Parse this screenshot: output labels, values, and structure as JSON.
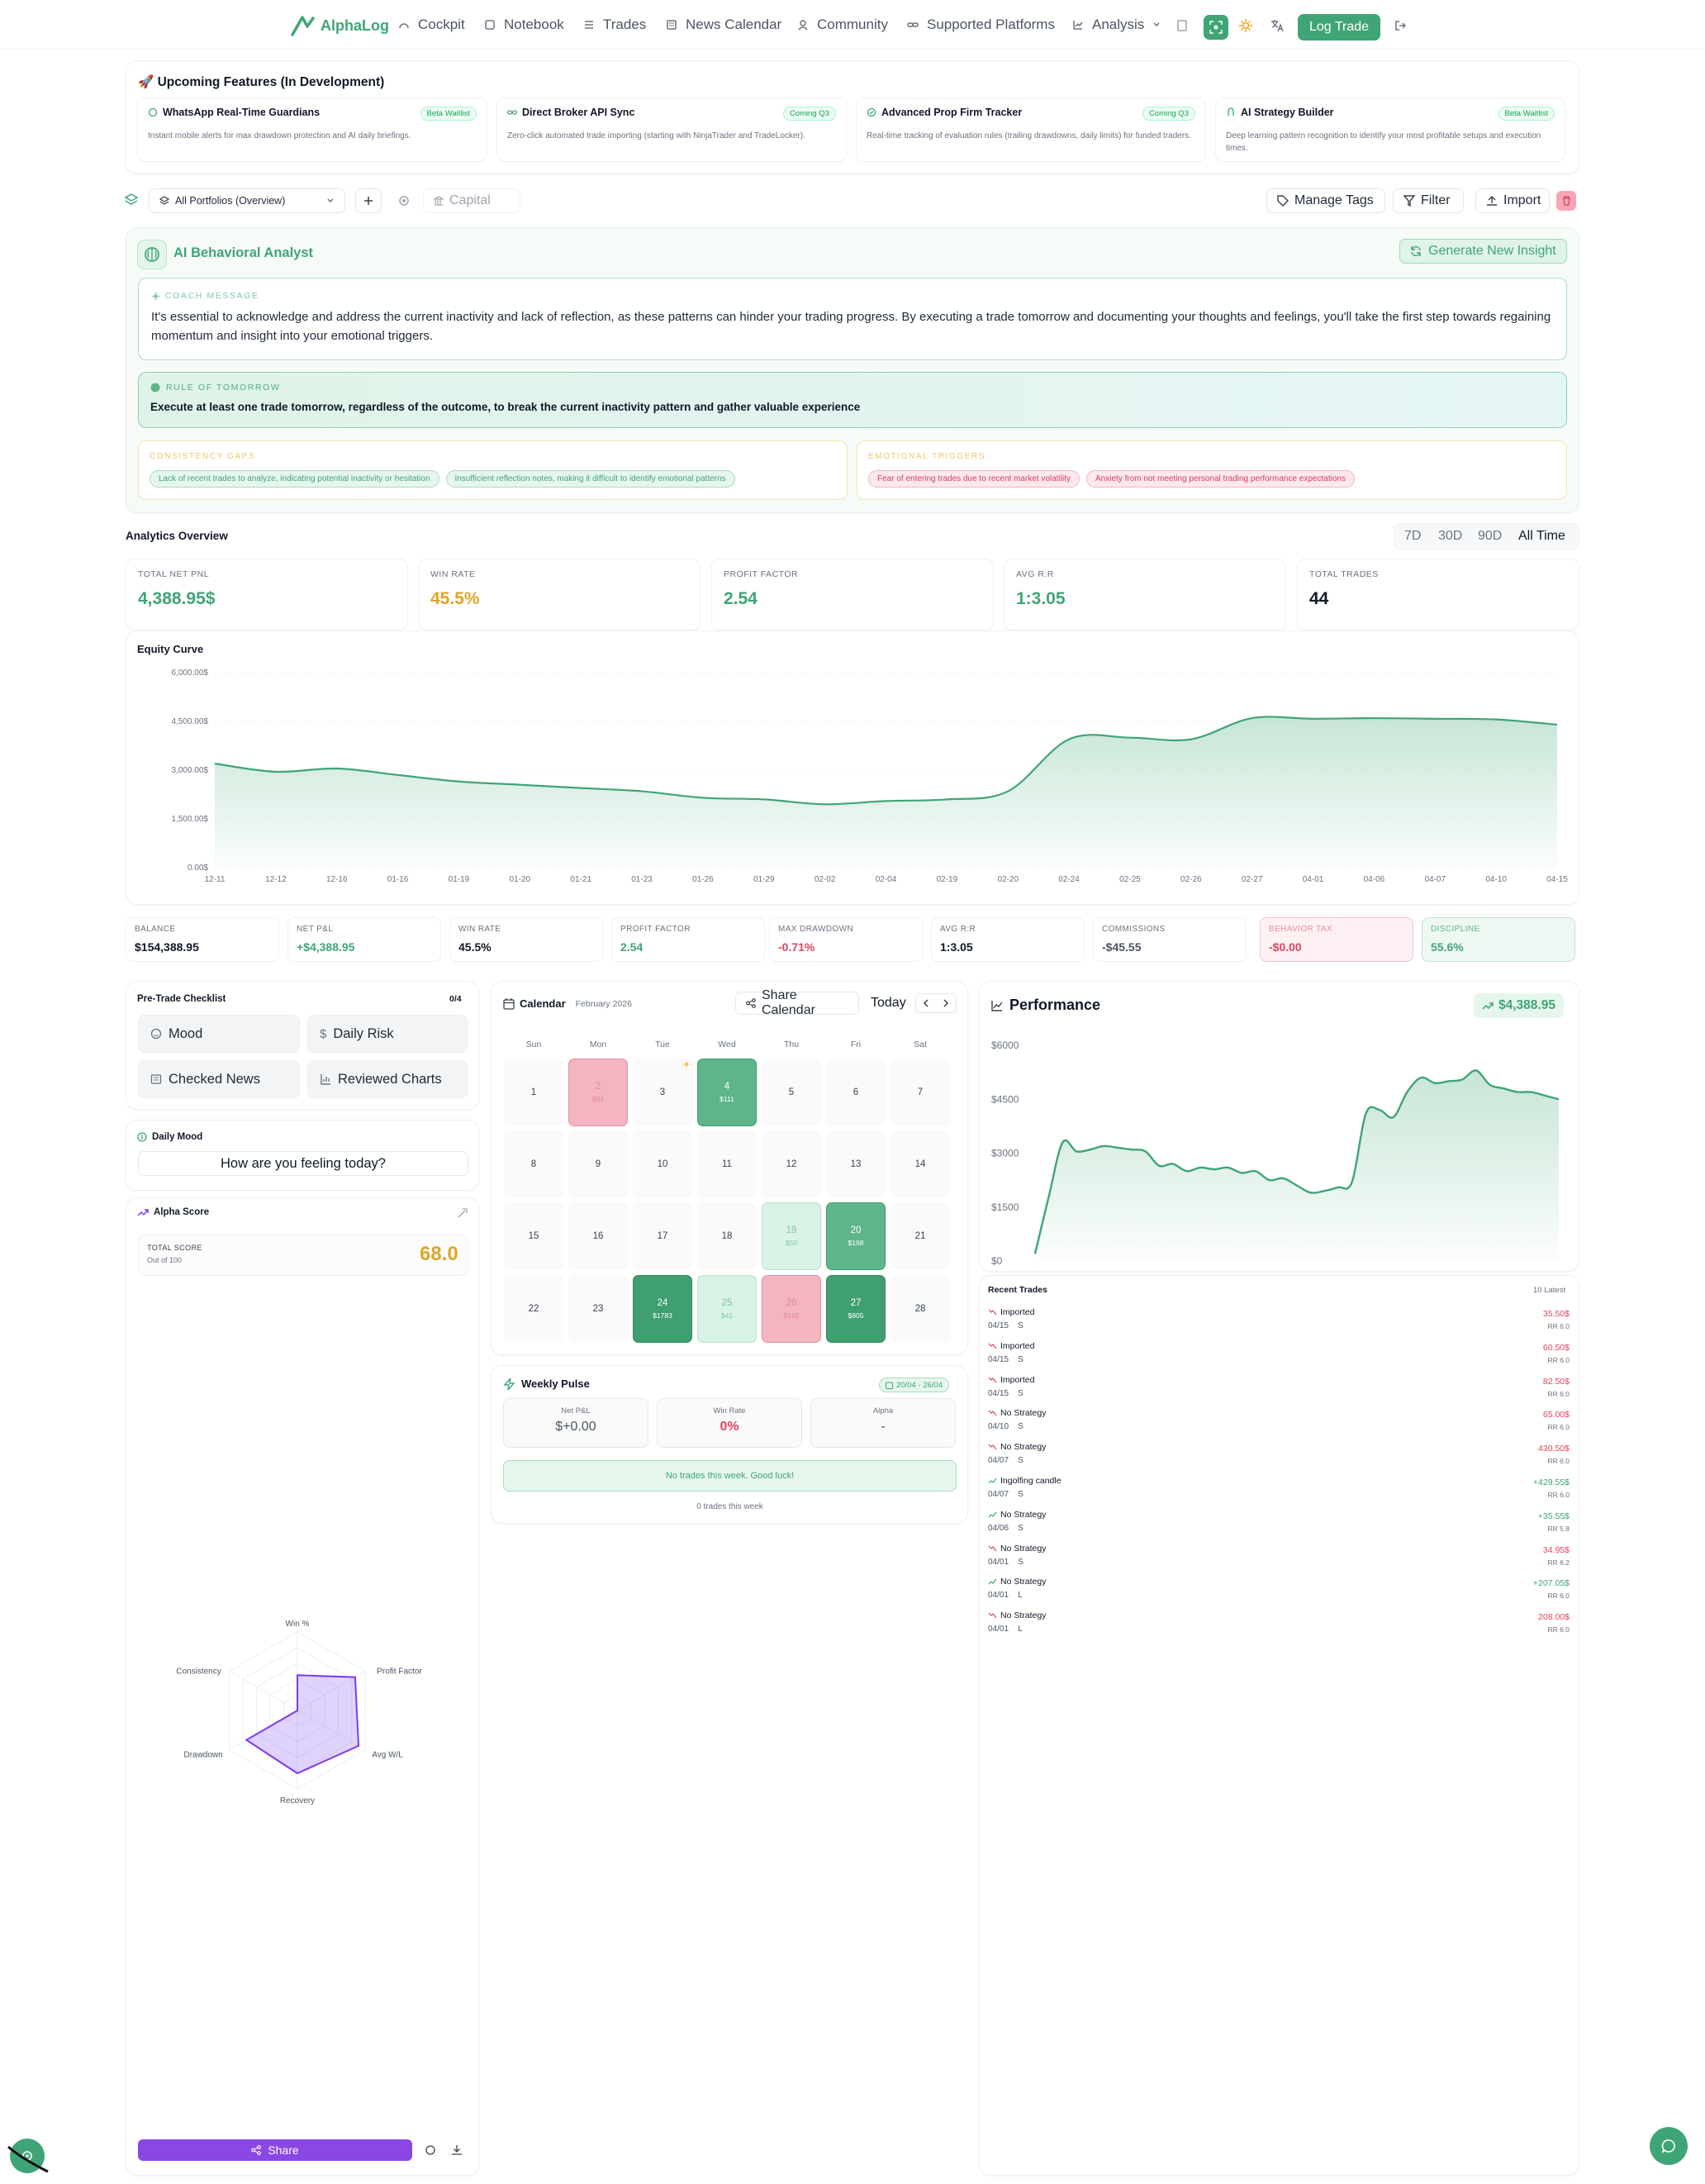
{
  "header": {
    "brand": "AlphaLog",
    "nav": [
      "Cockpit",
      "Notebook",
      "Trades",
      "News Calendar",
      "Community",
      "Supported Platforms",
      "Analysis"
    ],
    "log_trade": "Log Trade"
  },
  "features": {
    "title": "🚀 Upcoming Features (In Development)",
    "items": [
      {
        "title": "WhatsApp Real-Time Guardians",
        "badge": "Beta Waitlist",
        "desc": "Instant mobile alerts for max drawdown protection and AI daily briefings."
      },
      {
        "title": "Direct Broker API Sync",
        "badge": "Coming Q3",
        "desc": "Zero-click automated trade importing (starting with NinjaTrader and TradeLocker)."
      },
      {
        "title": "Advanced Prop Firm Tracker",
        "badge": "Coming Q3",
        "desc": "Real-time tracking of evaluation rules (trailing drawdowns, daily limits) for funded traders."
      },
      {
        "title": "AI Strategy Builder",
        "badge": "Beta Waitlist",
        "desc": "Deep learning pattern recognition to identify your most profitable setups and execution times."
      }
    ]
  },
  "toolbar": {
    "portfolio": "All Portfolios (Overview)",
    "capital_placeholder": "Capital",
    "manage_tags": "Manage Tags",
    "filter": "Filter",
    "import": "Import"
  },
  "ai": {
    "title": "AI Behavioral Analyst",
    "generate": "Generate New Insight",
    "coach_label": "COACH MESSAGE",
    "coach": "It's essential to acknowledge and address the current inactivity and lack of reflection, as these patterns can hinder your trading progress. By executing a trade tomorrow and documenting your thoughts and feelings, you'll take the first step towards regaining momentum and insight into your emotional triggers.",
    "rule_label": "RULE OF TOMORROW",
    "rule": "Execute at least one trade tomorrow, regardless of the outcome, to break the current inactivity pattern and gather valuable experience",
    "gaps_label": "CONSISTENCY GAPS",
    "gaps": [
      "Lack of recent trades to analyze, indicating potential inactivity or hesitation",
      "Insufficient reflection notes, making it difficult to identify emotional patterns"
    ],
    "triggers_label": "EMOTIONAL TRIGGERS",
    "triggers": [
      "Fear of entering trades due to recent market volatility",
      "Anxiety from not meeting personal trading performance expectations"
    ]
  },
  "analytics": {
    "title": "Analytics Overview",
    "ranges": [
      "7D",
      "30D",
      "90D",
      "All Time"
    ],
    "active_range": "All Time",
    "stats": [
      {
        "label": "TOTAL NET PNL",
        "value": "4,388.95$",
        "color": "#3fa576"
      },
      {
        "label": "WIN RATE",
        "value": "45.5%",
        "color": "#e0a526"
      },
      {
        "label": "PROFIT FACTOR",
        "value": "2.54",
        "color": "#3fa576"
      },
      {
        "label": "AVG R:R",
        "value": "1:3.05",
        "color": "#3fa576"
      },
      {
        "label": "TOTAL TRADES",
        "value": "44",
        "color": "#111827"
      }
    ]
  },
  "chart_data": [
    {
      "type": "area",
      "title": "Equity Curve",
      "ylim": [
        0,
        6000
      ],
      "yticks": [
        "0.00$",
        "1,500.00$",
        "3,000.00$",
        "4,500.00$",
        "6,000.00$"
      ],
      "x": [
        "12-11",
        "12-12",
        "12-16",
        "01-16",
        "01-19",
        "01-20",
        "01-21",
        "01-23",
        "01-26",
        "01-29",
        "02-02",
        "02-04",
        "02-19",
        "02-20",
        "02-24",
        "02-25",
        "02-26",
        "02-27",
        "04-01",
        "04-06",
        "04-07",
        "04-10",
        "04-15"
      ],
      "values": [
        3200,
        2950,
        3050,
        2850,
        2650,
        2550,
        2450,
        2350,
        2150,
        2100,
        1950,
        2050,
        2100,
        2350,
        3950,
        4000,
        3950,
        4600,
        4580,
        4600,
        4580,
        4560,
        4400
      ]
    },
    {
      "type": "area",
      "title": "Performance",
      "ylim": [
        0,
        6000
      ],
      "yticks": [
        "$0",
        "$1500",
        "$3000",
        "$4500",
        "$6000"
      ],
      "values": [
        200,
        1800,
        3300,
        3050,
        3100,
        3200,
        3150,
        3100,
        3050,
        2650,
        2700,
        2500,
        2600,
        2550,
        2600,
        2450,
        2500,
        2250,
        2300,
        2100,
        1900,
        1950,
        2050,
        2200,
        4100,
        4200,
        4000,
        4700,
        5100,
        4950,
        5000,
        5050,
        5300,
        4900,
        4800,
        4700,
        4700,
        4600,
        4500
      ]
    },
    {
      "type": "radar",
      "labels": [
        "Win %",
        "Profit Factor",
        "Avg W/L",
        "Recovery",
        "Drawdown",
        "Consistency"
      ],
      "values": [
        45,
        85,
        90,
        80,
        75,
        0
      ]
    }
  ],
  "balance": [
    {
      "label": "BALANCE",
      "value": "$154,388.95",
      "color": "#111827"
    },
    {
      "label": "NET P&L",
      "value": "+$4,388.95",
      "color": "#3fa576"
    },
    {
      "label": "WIN RATE",
      "value": "45.5%",
      "color": "#111827"
    },
    {
      "label": "PROFIT FACTOR",
      "value": "2.54",
      "color": "#3fa576"
    },
    {
      "label": "MAX DRAWDOWN",
      "value": "-0.71%",
      "color": "#e0445f"
    },
    {
      "label": "AVG R:R",
      "value": "1:3.05",
      "color": "#111827"
    },
    {
      "label": "COMMISSIONS",
      "value": "-$45.55",
      "color": "#4b5563"
    },
    {
      "label": "BEHAVIOR TAX",
      "value": "-$0.00",
      "color": "#e0445f"
    },
    {
      "label": "DISCIPLINE",
      "value": "55.6%",
      "color": "#3fa576"
    }
  ],
  "checklist": {
    "title": "Pre-Trade Checklist",
    "count": "0/4",
    "items": [
      "Mood",
      "Daily Risk",
      "Checked News",
      "Reviewed Charts"
    ]
  },
  "mood": {
    "title": "Daily Mood",
    "prompt": "How are you feeling today?"
  },
  "alpha": {
    "title": "Alpha Score",
    "total_label": "TOTAL SCORE",
    "sub": "Out of 100",
    "score": "68.0",
    "share": "Share"
  },
  "calendar": {
    "title": "Calendar",
    "month": "February 2026",
    "share": "Share Calendar",
    "today": "Today",
    "weekdays": [
      "Sun",
      "Mon",
      "Tue",
      "Wed",
      "Thu",
      "Fri",
      "Sat"
    ],
    "days": [
      {
        "d": "1"
      },
      {
        "d": "2",
        "p": "$64",
        "s": "r"
      },
      {
        "d": "3"
      },
      {
        "d": "4",
        "p": "$111",
        "s": "g"
      },
      {
        "d": "5"
      },
      {
        "d": "6"
      },
      {
        "d": "7"
      },
      {
        "d": "8"
      },
      {
        "d": "9"
      },
      {
        "d": "10"
      },
      {
        "d": "11"
      },
      {
        "d": "12"
      },
      {
        "d": "13"
      },
      {
        "d": "14"
      },
      {
        "d": "15"
      },
      {
        "d": "16"
      },
      {
        "d": "17"
      },
      {
        "d": "18"
      },
      {
        "d": "19",
        "p": "$50",
        "s": "lg"
      },
      {
        "d": "20",
        "p": "$198",
        "s": "g"
      },
      {
        "d": "21"
      },
      {
        "d": "22"
      },
      {
        "d": "23"
      },
      {
        "d": "24",
        "p": "$1783",
        "s": "dg"
      },
      {
        "d": "25",
        "p": "$41",
        "s": "lg"
      },
      {
        "d": "26",
        "p": "$165",
        "s": "r"
      },
      {
        "d": "27",
        "p": "$805",
        "s": "dg"
      },
      {
        "d": "28"
      }
    ]
  },
  "weekly": {
    "title": "Weekly Pulse",
    "range": "20/04 - 26/04",
    "netpnl_label": "Net P&L",
    "netpnl": "$+0.00",
    "winrate_label": "Win Rate",
    "winrate": "0%",
    "alpha_label": "Alpha",
    "alpha": "-",
    "msg": "No trades this week. Good luck!",
    "count": "0 trades this week"
  },
  "performance": {
    "title": "Performance",
    "value": "$4,388.95"
  },
  "recent": {
    "title": "Recent Trades",
    "latest": "10 Latest",
    "trades": [
      {
        "name": "Imported",
        "date": "04/15",
        "side": "S",
        "pnl": "35.50$",
        "rr": "RR 6.0",
        "win": false
      },
      {
        "name": "Imported",
        "date": "04/15",
        "side": "S",
        "pnl": "60.50$",
        "rr": "RR 6.0",
        "win": false
      },
      {
        "name": "Imported",
        "date": "04/15",
        "side": "S",
        "pnl": "82.50$",
        "rr": "RR 6.0",
        "win": false
      },
      {
        "name": "No Strategy",
        "date": "04/10",
        "side": "S",
        "pnl": "65.00$",
        "rr": "RR 6.0",
        "win": false
      },
      {
        "name": "No Strategy",
        "date": "04/07",
        "side": "S",
        "pnl": "430.50$",
        "rr": "RR 6.0",
        "win": false
      },
      {
        "name": "Ingolfing candle",
        "date": "04/07",
        "side": "S",
        "pnl": "+429.55$",
        "rr": "RR 6.0",
        "win": true
      },
      {
        "name": "No Strategy",
        "date": "04/06",
        "side": "S",
        "pnl": "+35.55$",
        "rr": "RR 5.8",
        "win": true
      },
      {
        "name": "No Strategy",
        "date": "04/01",
        "side": "S",
        "pnl": "34.95$",
        "rr": "RR 6.2",
        "win": false
      },
      {
        "name": "No Strategy",
        "date": "04/01",
        "side": "L",
        "pnl": "+207.05$",
        "rr": "RR 6.0",
        "win": true
      },
      {
        "name": "No Strategy",
        "date": "04/01",
        "side": "L",
        "pnl": "208.00$",
        "rr": "RR 6.0",
        "win": false
      }
    ]
  }
}
